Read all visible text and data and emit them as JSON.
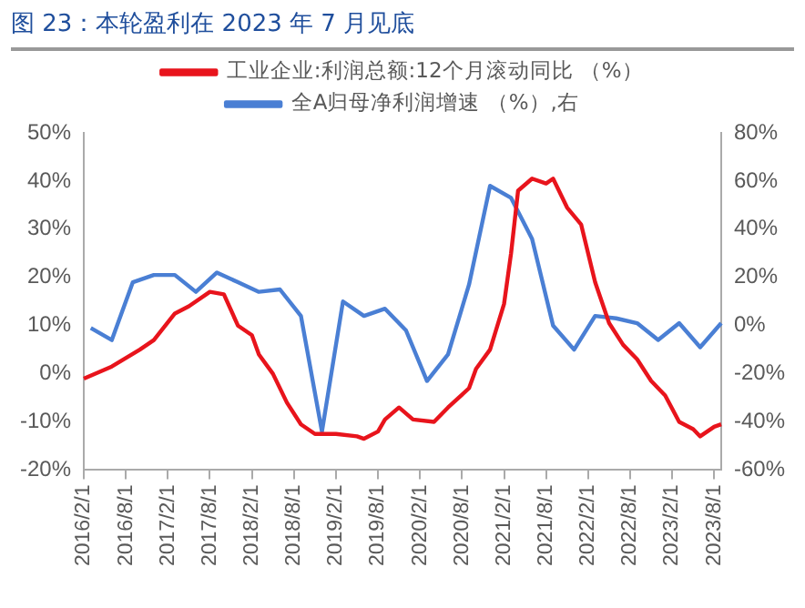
{
  "chart_data": {
    "type": "line",
    "title": "图 23：本轮盈利在 2023 年 7 月见底",
    "categories": [
      "2016/2/1",
      null,
      null,
      null,
      null,
      null,
      "2016/8/1",
      null,
      null,
      null,
      null,
      null,
      "2017/2/1",
      null,
      null,
      null,
      null,
      null,
      "2017/8/1",
      null,
      null,
      null,
      null,
      null,
      "2018/2/1",
      null,
      null,
      null,
      null,
      null,
      "2018/8/1",
      null,
      null,
      null,
      null,
      null,
      "2019/2/1",
      null,
      null,
      null,
      null,
      null,
      "2019/8/1",
      null,
      null,
      null,
      null,
      null,
      "2020/2/1",
      null,
      null,
      null,
      null,
      null,
      "2020/8/1",
      null,
      null,
      null,
      null,
      null,
      "2021/2/1",
      null,
      null,
      null,
      null,
      null,
      "2021/8/1",
      null,
      null,
      null,
      null,
      null,
      "2022/2/1",
      null,
      null,
      null,
      null,
      null,
      "2022/8/1",
      null,
      null,
      null,
      null,
      null,
      "2023/2/1",
      null,
      null,
      null,
      null,
      null,
      "2023/8/1",
      null
    ],
    "series": [
      {
        "name": "工业企业:利润总额:12个月滚动同比 （%）",
        "color": "#e8141c",
        "axis": "y",
        "values": [
          -1,
          null,
          null,
          null,
          1.5,
          null,
          null,
          null,
          5,
          null,
          7,
          null,
          null,
          12.5,
          null,
          14,
          null,
          null,
          17,
          null,
          16.5,
          null,
          10,
          null,
          8,
          4,
          null,
          0,
          null,
          -6,
          null,
          -10.5,
          null,
          -12.5,
          null,
          null,
          -12.5,
          null,
          null,
          -13,
          -13.5,
          null,
          -12,
          -9.5,
          null,
          -7,
          null,
          -9.5,
          null,
          null,
          -10,
          null,
          -7,
          null,
          null,
          -3,
          1,
          null,
          5,
          null,
          14.5,
          25,
          38,
          null,
          40.5,
          null,
          39.5,
          40.5,
          null,
          34.5,
          null,
          31,
          null,
          19,
          null,
          10.5,
          null,
          6,
          null,
          3,
          null,
          -1.5,
          null,
          -4.5,
          null,
          -10,
          null,
          -11.5,
          -13,
          null,
          -11,
          -10.5
        ]
      },
      {
        "name": "全A归母净利润增速 （%）,右",
        "color": "#4a7fd4",
        "axis": "y2",
        "values": [
          null,
          -1,
          null,
          null,
          -6,
          null,
          null,
          18,
          null,
          null,
          21,
          null,
          null,
          21,
          null,
          null,
          14,
          null,
          null,
          22,
          null,
          null,
          18,
          null,
          null,
          14,
          null,
          null,
          15,
          null,
          null,
          4,
          null,
          null,
          -44,
          null,
          null,
          10,
          null,
          null,
          4,
          null,
          null,
          7,
          null,
          null,
          -2,
          null,
          null,
          -23,
          null,
          null,
          -12,
          null,
          null,
          17,
          null,
          null,
          58,
          null,
          null,
          53,
          null,
          null,
          36,
          null,
          null,
          0,
          null,
          null,
          -10,
          null,
          null,
          4,
          null,
          null,
          3,
          null,
          null,
          1,
          null,
          null,
          -6,
          null,
          null,
          1,
          null,
          null,
          -9,
          null,
          null,
          1
        ]
      }
    ],
    "ylim": [
      -20,
      50
    ],
    "yticks": [
      {
        "value": -20,
        "label": "-20%"
      },
      {
        "value": -10,
        "label": "-10%"
      },
      {
        "value": 0,
        "label": "0%"
      },
      {
        "value": 10,
        "label": "10%"
      },
      {
        "value": 20,
        "label": "20%"
      },
      {
        "value": 30,
        "label": "30%"
      },
      {
        "value": 40,
        "label": "40%"
      },
      {
        "value": 50,
        "label": "50%"
      }
    ],
    "y2lim": [
      -60,
      80
    ],
    "y2ticks": [
      {
        "value": -60,
        "label": "-60%"
      },
      {
        "value": -40,
        "label": "-40%"
      },
      {
        "value": -20,
        "label": "-20%"
      },
      {
        "value": 0,
        "label": "0%"
      },
      {
        "value": 20,
        "label": "20%"
      },
      {
        "value": 40,
        "label": "40%"
      },
      {
        "value": 60,
        "label": "60%"
      },
      {
        "value": 80,
        "label": "80%"
      }
    ],
    "grid": false,
    "legend": "top",
    "marker": "none",
    "line_style": "solid"
  }
}
